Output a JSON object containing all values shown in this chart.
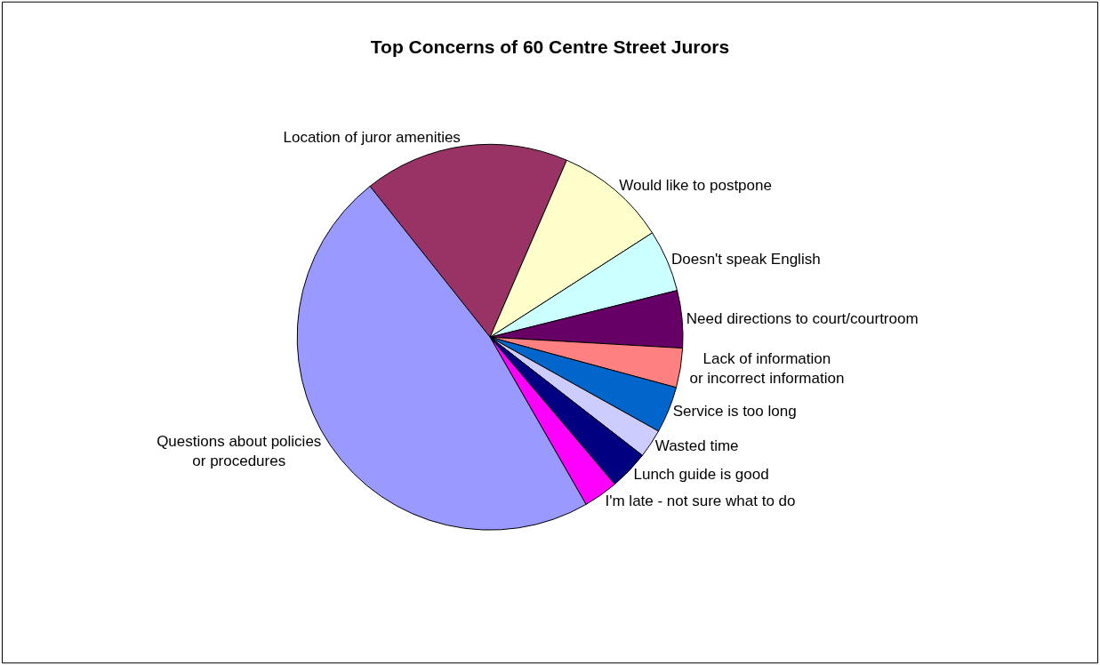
{
  "chart_data": {
    "type": "pie",
    "title": "Top Concerns of 60 Centre Street Jurors",
    "categories": [
      "Location of juror amenities",
      "Would like to postpone",
      "Doesn't speak English",
      "Need directions to court/courtroom",
      "Lack of information\nor incorrect information",
      "Service is too long",
      "Wasted time",
      "Lunch guide is good",
      "I'm late - not sure what to do",
      "Questions about policies\nor procedures"
    ],
    "values": [
      17.2,
      9.4,
      5.2,
      4.8,
      3.3,
      3.9,
      2.4,
      3.3,
      2.9,
      47.6
    ],
    "colors": [
      "#993366",
      "#ffffcc",
      "#ccffff",
      "#660066",
      "#ff8080",
      "#0066cc",
      "#ccccff",
      "#000080",
      "#ff00ff",
      "#9999ff"
    ],
    "legend": false
  }
}
